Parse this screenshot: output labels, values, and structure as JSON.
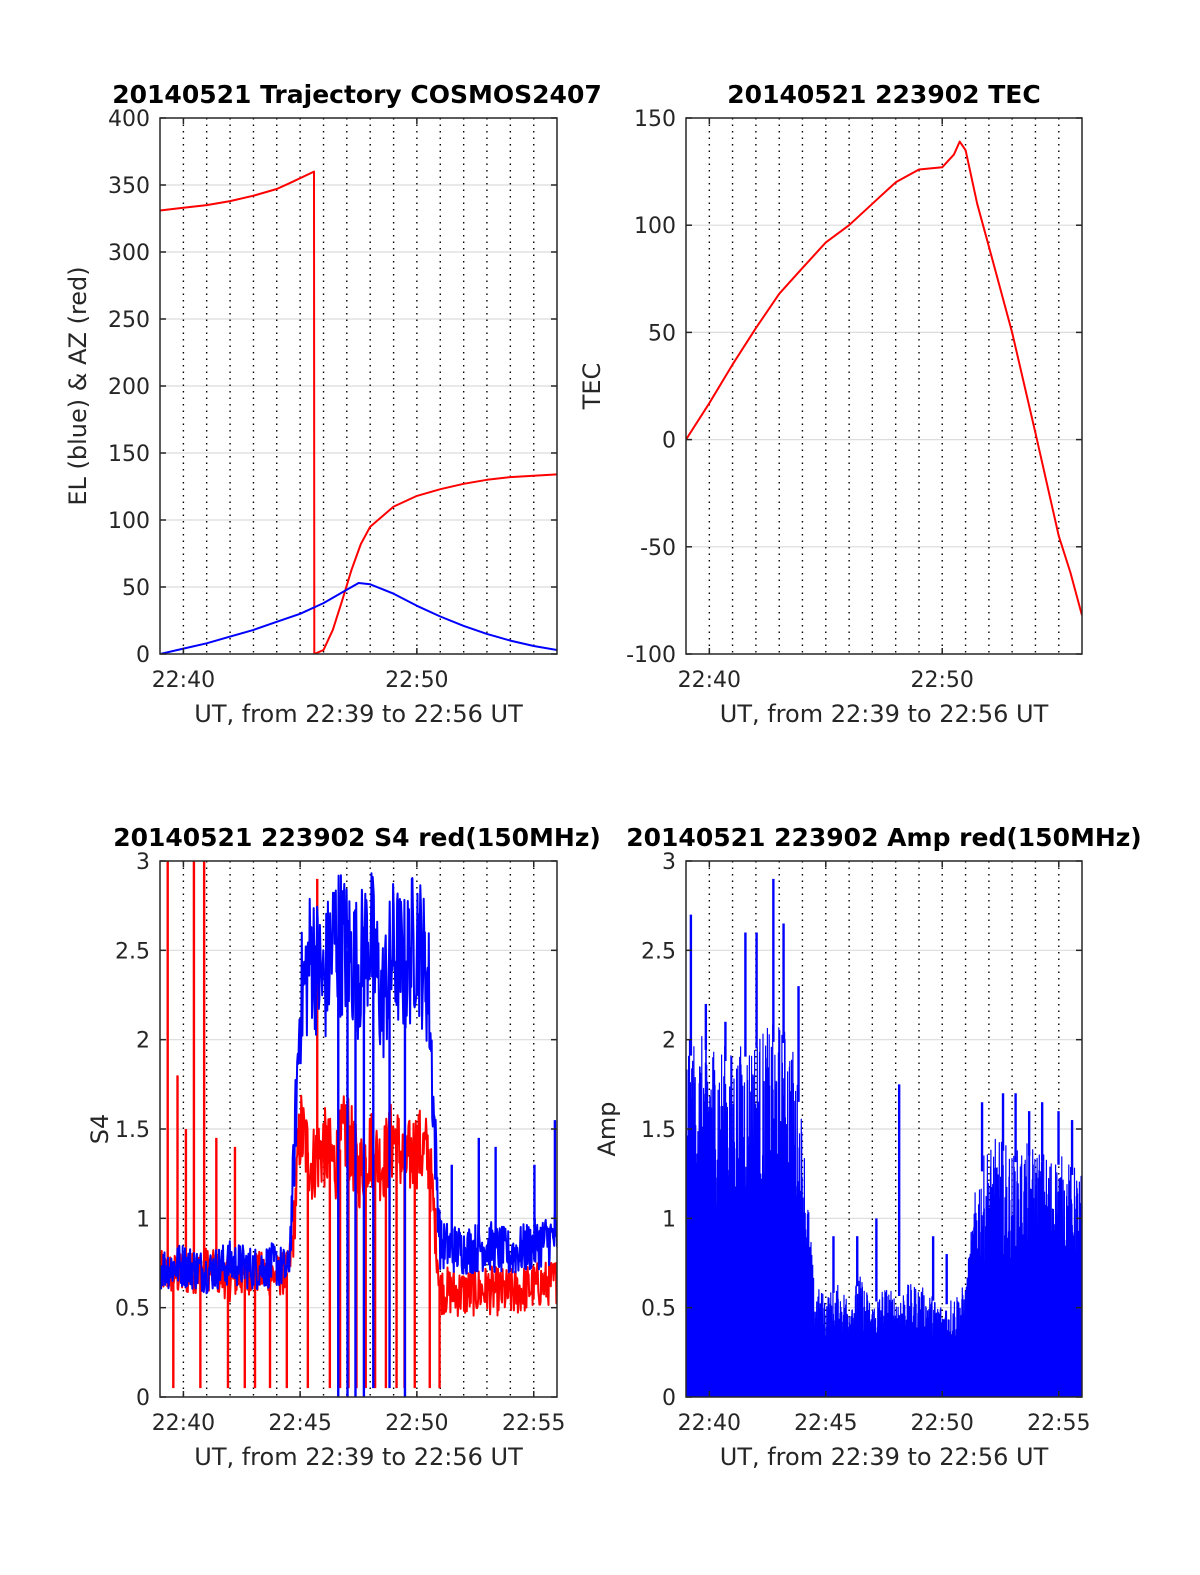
{
  "figure": {
    "background": "#ffffff",
    "colors": {
      "red": "#ff0000",
      "blue": "#0000ff",
      "axis": "#262626",
      "grid": "#dcdcdc",
      "vgrid": "#000000"
    }
  },
  "chart_data": [
    {
      "type": "line",
      "title": "20140521 Trajectory COSMOS2407",
      "xlabel": "UT, from 22:39 to 22:56 UT",
      "ylabel": "EL (blue) & AZ (red)",
      "xlim": [
        22.65,
        22.9333
      ],
      "ylim": [
        0,
        400
      ],
      "xticks": [
        22.6667,
        22.8333
      ],
      "xticklabels": [
        "22:40",
        "22:50"
      ],
      "yticks": [
        0,
        50,
        100,
        150,
        200,
        250,
        300,
        350,
        400
      ],
      "yticklabels": [
        "0",
        "50",
        "100",
        "150",
        "200",
        "250",
        "300",
        "350",
        "400"
      ],
      "vgrid_minutes": [
        22.65,
        22.6667,
        22.6833,
        22.7,
        22.7167,
        22.7333,
        22.75,
        22.7667,
        22.7833,
        22.8,
        22.8167,
        22.8333,
        22.85,
        22.8667,
        22.8833,
        22.9,
        22.9167
      ],
      "series": [
        {
          "color": "#ff0000",
          "x": [
            22.65,
            22.6667,
            22.6833,
            22.7,
            22.7167,
            22.7333,
            22.7417,
            22.7599,
            22.7601,
            22.7667,
            22.7733,
            22.78,
            22.7867,
            22.7933,
            22.8,
            22.8167,
            22.8333,
            22.85,
            22.8667,
            22.8833,
            22.9,
            22.9167,
            22.9333
          ],
          "y": [
            331,
            333,
            335,
            338,
            342,
            347,
            351,
            360,
            0,
            3,
            18,
            40,
            63,
            82,
            95,
            110,
            118,
            123,
            127,
            130,
            132,
            133,
            134
          ]
        },
        {
          "color": "#0000ff",
          "x": [
            22.65,
            22.6667,
            22.6833,
            22.7,
            22.7167,
            22.7333,
            22.75,
            22.7667,
            22.78,
            22.7917,
            22.8,
            22.8167,
            22.8333,
            22.85,
            22.8667,
            22.8833,
            22.9,
            22.9167,
            22.9333
          ],
          "y": [
            0,
            4,
            8,
            13,
            18,
            24,
            30,
            38,
            46,
            53,
            52,
            45,
            36,
            28,
            21,
            15,
            10,
            6,
            3
          ]
        }
      ]
    },
    {
      "type": "line",
      "title": "20140521 223902 TEC",
      "xlabel": "UT, from 22:39 to 22:56 UT",
      "ylabel": "TEC",
      "xlim": [
        22.65,
        22.9333
      ],
      "ylim": [
        -100,
        150
      ],
      "xticks": [
        22.6667,
        22.8333
      ],
      "xticklabels": [
        "22:40",
        "22:50"
      ],
      "yticks": [
        -100,
        -50,
        0,
        50,
        100,
        150
      ],
      "yticklabels": [
        "-100",
        "-50",
        "0",
        "50",
        "100",
        "150"
      ],
      "vgrid_minutes": [
        22.6667,
        22.6833,
        22.7,
        22.7167,
        22.7333,
        22.75,
        22.7667,
        22.7833,
        22.8,
        22.8167,
        22.8333,
        22.85,
        22.8667,
        22.8833,
        22.9,
        22.9167
      ],
      "series": [
        {
          "color": "#ff0000",
          "x": [
            22.65,
            22.6667,
            22.6833,
            22.7,
            22.7167,
            22.7333,
            22.75,
            22.7667,
            22.7833,
            22.8,
            22.8167,
            22.8333,
            22.8417,
            22.8458,
            22.85,
            22.8583,
            22.8667,
            22.8833,
            22.9,
            22.9167,
            22.925,
            22.9333
          ],
          "y": [
            0,
            17,
            35,
            52,
            68,
            80,
            92,
            100,
            110,
            120,
            126,
            127,
            133,
            139,
            135,
            110,
            90,
            50,
            3,
            -45,
            -62,
            -82
          ]
        }
      ]
    },
    {
      "type": "line",
      "title": "20140521 223902 S4 red(150MHz)",
      "xlabel": "UT, from 22:39 to 22:56 UT",
      "ylabel": "S4",
      "xlim": [
        22.65,
        22.9333
      ],
      "ylim": [
        0,
        3
      ],
      "xticks": [
        22.6667,
        22.75,
        22.8333,
        22.9167
      ],
      "xticklabels": [
        "22:40",
        "22:45",
        "22:50",
        "22:55"
      ],
      "yticks": [
        0,
        0.5,
        1,
        1.5,
        2,
        2.5,
        3
      ],
      "yticklabels": [
        "0",
        "0.5",
        "1",
        "1.5",
        "2",
        "2.5",
        "3"
      ],
      "vgrid_minutes": [
        22.6667,
        22.6833,
        22.7,
        22.7167,
        22.7333,
        22.75,
        22.7667,
        22.7833,
        22.8,
        22.8167,
        22.8333,
        22.85,
        22.8667,
        22.8833,
        22.9,
        22.9167
      ],
      "series": [
        {
          "color": "#ff0000",
          "noise": true,
          "x": [
            22.65,
            22.6667,
            22.6833,
            22.7,
            22.7167,
            22.7333,
            22.7417,
            22.745,
            22.75,
            22.7583,
            22.7667,
            22.775,
            22.7833,
            22.7917,
            22.8,
            22.8083,
            22.8167,
            22.825,
            22.8333,
            22.8417,
            22.8458,
            22.85,
            22.8667,
            22.8833,
            22.9,
            22.9167,
            22.9333
          ],
          "y": [
            0.7,
            0.68,
            0.72,
            0.66,
            0.7,
            0.68,
            0.7,
            0.9,
            1.5,
            1.3,
            1.4,
            1.3,
            1.5,
            1.25,
            1.4,
            1.3,
            1.45,
            1.3,
            1.4,
            1.35,
            1.0,
            0.6,
            0.58,
            0.6,
            0.58,
            0.62,
            0.65
          ],
          "spikes": [
            {
              "x": 22.6555,
              "y": 3.0
            },
            {
              "x": 22.6595,
              "y": 0.05
            },
            {
              "x": 22.6625,
              "y": 1.8
            },
            {
              "x": 22.6685,
              "y": 1.5
            },
            {
              "x": 22.6742,
              "y": 3.0
            },
            {
              "x": 22.6788,
              "y": 0.05
            },
            {
              "x": 22.6815,
              "y": 3.0
            },
            {
              "x": 22.6902,
              "y": 1.45
            },
            {
              "x": 22.6985,
              "y": 0.05
            },
            {
              "x": 22.7035,
              "y": 1.4
            },
            {
              "x": 22.7105,
              "y": 0.05
            },
            {
              "x": 22.7178,
              "y": 0.05
            },
            {
              "x": 22.7285,
              "y": 0.05
            },
            {
              "x": 22.7405,
              "y": 0.05
            },
            {
              "x": 22.7555,
              "y": 0.05
            },
            {
              "x": 22.7622,
              "y": 2.9
            },
            {
              "x": 22.7712,
              "y": 0.05
            },
            {
              "x": 22.7785,
              "y": 0.05
            },
            {
              "x": 22.7845,
              "y": 0.05
            },
            {
              "x": 22.7902,
              "y": 0.05
            },
            {
              "x": 22.7968,
              "y": 0.05
            },
            {
              "x": 22.8035,
              "y": 0.05
            },
            {
              "x": 22.8112,
              "y": 0.05
            },
            {
              "x": 22.8188,
              "y": 0.05
            },
            {
              "x": 22.8245,
              "y": 0.05
            },
            {
              "x": 22.8318,
              "y": 0.05
            },
            {
              "x": 22.8425,
              "y": 0.05
            },
            {
              "x": 22.8495,
              "y": 0.05
            }
          ]
        },
        {
          "color": "#0000ff",
          "noise": true,
          "x": [
            22.65,
            22.6667,
            22.6833,
            22.7,
            22.7167,
            22.7333,
            22.7417,
            22.745,
            22.75,
            22.7583,
            22.7667,
            22.775,
            22.7833,
            22.7917,
            22.8,
            22.8083,
            22.8167,
            22.825,
            22.8333,
            22.8417,
            22.8458,
            22.85,
            22.8667,
            22.8833,
            22.9,
            22.9167,
            22.9333
          ],
          "y": [
            0.72,
            0.74,
            0.7,
            0.75,
            0.72,
            0.74,
            0.7,
            1.2,
            2.2,
            2.5,
            2.3,
            2.6,
            2.5,
            2.4,
            2.6,
            2.2,
            2.5,
            2.4,
            2.6,
            2.3,
            1.5,
            0.85,
            0.82,
            0.85,
            0.8,
            0.85,
            0.9
          ],
          "spikes": [
            {
              "x": 22.7772,
              "y": 0.0
            },
            {
              "x": 22.7838,
              "y": 0.0
            },
            {
              "x": 22.7895,
              "y": 0.0
            },
            {
              "x": 22.7955,
              "y": 0.0
            },
            {
              "x": 22.8022,
              "y": 0.05
            },
            {
              "x": 22.8138,
              "y": 0.05
            },
            {
              "x": 22.8248,
              "y": 0.0
            },
            {
              "x": 22.8582,
              "y": 1.3
            },
            {
              "x": 22.8775,
              "y": 1.45
            },
            {
              "x": 22.8895,
              "y": 1.4
            },
            {
              "x": 22.9172,
              "y": 1.3
            },
            {
              "x": 22.9318,
              "y": 1.55
            }
          ]
        }
      ]
    },
    {
      "type": "line",
      "title": "20140521 223902 Amp red(150MHz)",
      "xlabel": "UT, from 22:39 to 22:56 UT",
      "ylabel": "Amp",
      "xlim": [
        22.65,
        22.9333
      ],
      "ylim": [
        0,
        3
      ],
      "xticks": [
        22.6667,
        22.75,
        22.8333,
        22.9167
      ],
      "xticklabels": [
        "22:40",
        "22:45",
        "22:50",
        "22:55"
      ],
      "yticks": [
        0,
        0.5,
        1,
        1.5,
        2,
        2.5,
        3
      ],
      "yticklabels": [
        "0",
        "0.5",
        "1",
        "1.5",
        "2",
        "2.5",
        "3"
      ],
      "vgrid_minutes": [
        22.6667,
        22.6833,
        22.7,
        22.7167,
        22.7333,
        22.75,
        22.7667,
        22.7833,
        22.8,
        22.8167,
        22.8333,
        22.85,
        22.8667,
        22.8833,
        22.9,
        22.9167
      ],
      "series": [
        {
          "color": "#0000ff",
          "fill": true,
          "x": [
            22.65,
            22.6667,
            22.6833,
            22.7,
            22.7167,
            22.725,
            22.7333,
            22.7417,
            22.75,
            22.7583,
            22.7667,
            22.775,
            22.7833,
            22.7917,
            22.8,
            22.8083,
            22.8167,
            22.825,
            22.8333,
            22.8417,
            22.85,
            22.8583,
            22.8667,
            22.875,
            22.8833,
            22.8917,
            22.9,
            22.9083,
            22.9167,
            22.925,
            22.9333
          ],
          "y": [
            1.9,
            1.95,
            1.85,
            1.95,
            2.0,
            1.95,
            1.5,
            0.6,
            0.55,
            0.6,
            0.55,
            0.65,
            0.5,
            0.6,
            0.55,
            0.6,
            0.6,
            0.55,
            0.5,
            0.55,
            0.6,
            1.2,
            1.35,
            1.4,
            1.3,
            1.35,
            1.35,
            1.3,
            1.3,
            1.25,
            1.2
          ],
          "spikes": [
            {
              "x": 22.6535,
              "y": 2.7
            },
            {
              "x": 22.6642,
              "y": 2.2
            },
            {
              "x": 22.6782,
              "y": 2.1
            },
            {
              "x": 22.6925,
              "y": 2.6
            },
            {
              "x": 22.7005,
              "y": 2.6
            },
            {
              "x": 22.7125,
              "y": 2.9
            },
            {
              "x": 22.7198,
              "y": 2.65
            },
            {
              "x": 22.7305,
              "y": 2.3
            },
            {
              "x": 22.7555,
              "y": 0.9
            },
            {
              "x": 22.7725,
              "y": 0.9
            },
            {
              "x": 22.7862,
              "y": 1.0
            },
            {
              "x": 22.8025,
              "y": 1.75
            },
            {
              "x": 22.8268,
              "y": 0.9
            },
            {
              "x": 22.8365,
              "y": 0.8
            },
            {
              "x": 22.8618,
              "y": 1.65
            },
            {
              "x": 22.8768,
              "y": 1.7
            },
            {
              "x": 22.8858,
              "y": 1.7
            },
            {
              "x": 22.8955,
              "y": 1.6
            },
            {
              "x": 22.9048,
              "y": 1.65
            },
            {
              "x": 22.9165,
              "y": 1.6
            },
            {
              "x": 22.9262,
              "y": 1.55
            }
          ]
        }
      ]
    }
  ]
}
